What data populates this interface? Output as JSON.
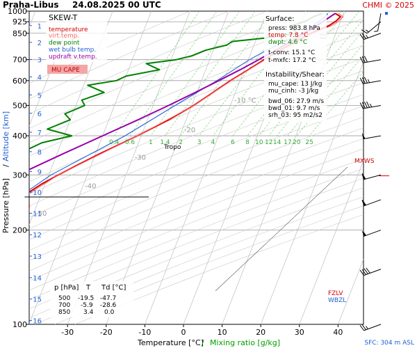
{
  "header": {
    "station": "Praha-Libus",
    "datetime": "24.08.2025 00 UTC",
    "credit": "CHMI © 2025"
  },
  "legend": {
    "title": "SKEW-T",
    "items": [
      {
        "label": "temperature",
        "color": "#d40000"
      },
      {
        "label": "virt.temp.",
        "color": "#ff6666"
      },
      {
        "label": "dew point",
        "color": "#008000"
      },
      {
        "label": "wet bulb temp.",
        "color": "#1f5fd6"
      },
      {
        "label": "updraft v.temp.",
        "color": "#9900aa"
      }
    ],
    "mu_cape_label": "MU CAPE"
  },
  "surface": {
    "title": "Surface:",
    "press": "press: 983.8 hPa",
    "temp": "temp: 7.8 °C",
    "dwpt": "dwpt: 4.6 °C",
    "tconv": "t-conv: 15.1 °C",
    "tmxfc": "t-mxfc: 17.2 °C"
  },
  "instability": {
    "title": "Instability/Shear:",
    "mu_cape": "mu_cape: 13 J/kg",
    "mu_cinh": "mu_cinh: -3 J/kg",
    "bwd_06": "bwd_06: 27.9 m/s",
    "bwd_01": "bwd_01: 9.7 m/s",
    "srh_03": "srh_03: 95 m2/s2"
  },
  "levels_table": {
    "headers": [
      "p [hPa]",
      "T",
      "Td [°C]"
    ],
    "rows": [
      [
        "500",
        "-19.5",
        "-47.7"
      ],
      [
        "700",
        "-5.9",
        "-28.6"
      ],
      [
        "850",
        "3.4",
        "0.0"
      ]
    ]
  },
  "markers": {
    "tropo": "Tropo",
    "mxws": "MXWS",
    "fzlv": "FZLV",
    "wbzl": "WBZL",
    "sfc": "SFC: 304 m ASL"
  },
  "chart_data": {
    "type": "line",
    "skew_t": true,
    "xlabel": "Temperature [°C]",
    "xlabel_mixing": "Mixing ratio [g/kg]",
    "ylabel": "Pressure [hPa]",
    "ylabel2": "Altitude [km]",
    "xlim": [
      -37,
      42
    ],
    "ylim_hpa": [
      1000,
      100
    ],
    "x_ticks": [
      -30,
      -20,
      -10,
      0,
      10,
      20,
      30,
      40
    ],
    "pressure_ticks": [
      100,
      200,
      300,
      400,
      500,
      600,
      700,
      850,
      925,
      1000
    ],
    "altitude_ticks": [
      1,
      2,
      3,
      4,
      5,
      6,
      7,
      8,
      9,
      10,
      11,
      12,
      13,
      14,
      15,
      16
    ],
    "isotherm_labels": [
      "-80 °C",
      "-70",
      "-60",
      "-50",
      "-40",
      "-30",
      "-20",
      "-10 °C"
    ],
    "mixing_ratio_labels": [
      "0.4",
      "0.6",
      "1",
      "1.4",
      "2",
      "3",
      "4",
      "6",
      "8",
      "10",
      "12",
      "14",
      "17",
      "20",
      "25"
    ],
    "grid": true,
    "series": [
      {
        "name": "temperature",
        "color": "#d40000",
        "points": [
          [
            983.8,
            7.8
          ],
          [
            960,
            9.5
          ],
          [
            930,
            8.8
          ],
          [
            900,
            7.5
          ],
          [
            875,
            5.5
          ],
          [
            850,
            3.4
          ],
          [
            800,
            0.3
          ],
          [
            750,
            -2.8
          ],
          [
            700,
            -5.9
          ],
          [
            650,
            -9
          ],
          [
            600,
            -12.5
          ],
          [
            550,
            -15.8
          ],
          [
            500,
            -19.5
          ],
          [
            450,
            -24.5
          ],
          [
            400,
            -31
          ],
          [
            350,
            -39
          ],
          [
            320,
            -44
          ],
          [
            300,
            -47.5
          ],
          [
            280,
            -51
          ],
          [
            260,
            -54
          ],
          [
            250,
            -55
          ],
          [
            240,
            -52
          ],
          [
            230,
            -51.5
          ],
          [
            220,
            -52
          ],
          [
            200,
            -53
          ],
          [
            180,
            -54
          ],
          [
            160,
            -56
          ],
          [
            150,
            -57
          ],
          [
            140,
            -58
          ],
          [
            120,
            -61
          ],
          [
            110,
            -62
          ],
          [
            100,
            -63
          ]
        ]
      },
      {
        "name": "virt.temp.",
        "color": "#ff6666",
        "points": [
          [
            983.8,
            8.6
          ],
          [
            960,
            10.2
          ],
          [
            930,
            9.5
          ],
          [
            900,
            8.2
          ],
          [
            875,
            6.2
          ],
          [
            850,
            4.1
          ],
          [
            800,
            0.9
          ],
          [
            750,
            -2.4
          ],
          [
            700,
            -5.6
          ],
          [
            600,
            -12.3
          ],
          [
            500,
            -19.4
          ],
          [
            400,
            -31
          ],
          [
            300,
            -47.5
          ],
          [
            250,
            -55
          ],
          [
            200,
            -53
          ],
          [
            150,
            -57
          ],
          [
            100,
            -63
          ]
        ]
      },
      {
        "name": "dew point",
        "color": "#008000",
        "points": [
          [
            983.8,
            4.6
          ],
          [
            960,
            2.5
          ],
          [
            930,
            1
          ],
          [
            900,
            -2
          ],
          [
            875,
            -1.5
          ],
          [
            850,
            0
          ],
          [
            820,
            -8
          ],
          [
            800,
            -16
          ],
          [
            780,
            -17
          ],
          [
            750,
            -22
          ],
          [
            720,
            -25
          ],
          [
            700,
            -28.6
          ],
          [
            680,
            -36
          ],
          [
            650,
            -32
          ],
          [
            620,
            -40
          ],
          [
            600,
            -42
          ],
          [
            580,
            -49
          ],
          [
            550,
            -44
          ],
          [
            520,
            -49
          ],
          [
            500,
            -47.7
          ],
          [
            470,
            -52
          ],
          [
            450,
            -50
          ],
          [
            420,
            -55
          ],
          [
            400,
            -48
          ],
          [
            380,
            -55
          ],
          [
            350,
            -60
          ],
          [
            320,
            -62
          ],
          [
            300,
            -64
          ],
          [
            280,
            -68
          ],
          [
            260,
            -65
          ],
          [
            240,
            -70
          ],
          [
            220,
            -77
          ],
          [
            200,
            -80
          ],
          [
            180,
            -83
          ],
          [
            160,
            -86
          ],
          [
            140,
            -88
          ],
          [
            120,
            -90
          ],
          [
            100,
            -92
          ]
        ]
      },
      {
        "name": "wet bulb temp.",
        "color": "#1f5fd6",
        "points": [
          [
            983.8,
            5.9
          ],
          [
            960,
            5.5
          ],
          [
            930,
            4.6
          ],
          [
            900,
            3.3
          ],
          [
            850,
            1.5
          ],
          [
            800,
            -2.5
          ],
          [
            750,
            -6.2
          ],
          [
            700,
            -9.7
          ],
          [
            600,
            -16
          ],
          [
            500,
            -24.3
          ],
          [
            400,
            -34.2
          ],
          [
            300,
            -49.4
          ],
          [
            250,
            -56.2
          ],
          [
            200,
            -54.6
          ],
          [
            150,
            -58.1
          ],
          [
            100,
            -64
          ]
        ]
      },
      {
        "name": "updraft v.temp.",
        "color": "#9900aa",
        "points": [
          [
            983.8,
            7.8
          ],
          [
            950,
            6.5
          ],
          [
            900,
            4.3
          ],
          [
            850,
            1.9
          ],
          [
            800,
            -0.8
          ],
          [
            750,
            -3.8
          ],
          [
            700,
            -7.3
          ],
          [
            650,
            -11.1
          ],
          [
            600,
            -15.5
          ],
          [
            550,
            -20.4
          ],
          [
            500,
            -26
          ],
          [
            450,
            -32.5
          ],
          [
            400,
            -40
          ],
          [
            350,
            -48.5
          ],
          [
            300,
            -58
          ],
          [
            250,
            -68
          ],
          [
            200,
            -78.5
          ],
          [
            150,
            -89
          ],
          [
            140,
            -91
          ]
        ]
      }
    ],
    "wind_barbs": [
      {
        "p": 983.8,
        "dir": 190,
        "speed_kt": 5
      },
      {
        "p": 925,
        "dir": 230,
        "speed_kt": 15
      },
      {
        "p": 850,
        "dir": 250,
        "speed_kt": 25
      },
      {
        "p": 700,
        "dir": 260,
        "speed_kt": 30
      },
      {
        "p": 600,
        "dir": 260,
        "speed_kt": 35
      },
      {
        "p": 500,
        "dir": 260,
        "speed_kt": 45
      },
      {
        "p": 400,
        "dir": 260,
        "speed_kt": 50
      },
      {
        "p": 300,
        "dir": 255,
        "speed_kt": 60
      },
      {
        "p": 250,
        "dir": 250,
        "speed_kt": 60
      },
      {
        "p": 200,
        "dir": 250,
        "speed_kt": 55
      },
      {
        "p": 150,
        "dir": 250,
        "speed_kt": 40
      },
      {
        "p": 100,
        "dir": 250,
        "speed_kt": 25
      }
    ],
    "tropopause_hpa": 255,
    "mxws_hpa": 298,
    "fzlv_hpa": 820,
    "wbzl_hpa": 840
  }
}
